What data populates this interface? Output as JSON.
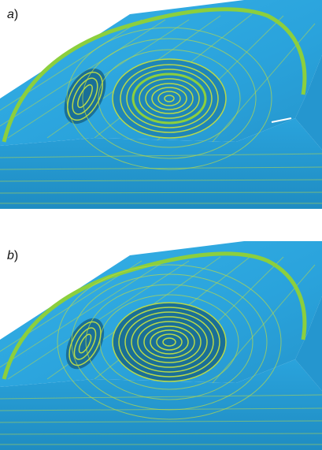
{
  "panels": [
    {
      "letter": "a",
      "suffix": ")"
    },
    {
      "letter": "b",
      "suffix": ")"
    }
  ],
  "colors": {
    "surface": "#2aa3dc",
    "surface_dark": "#1a6f97",
    "toolpath": "#b7d94a",
    "toolpath_bright": "#8ccf3d",
    "background": "#ffffff"
  }
}
